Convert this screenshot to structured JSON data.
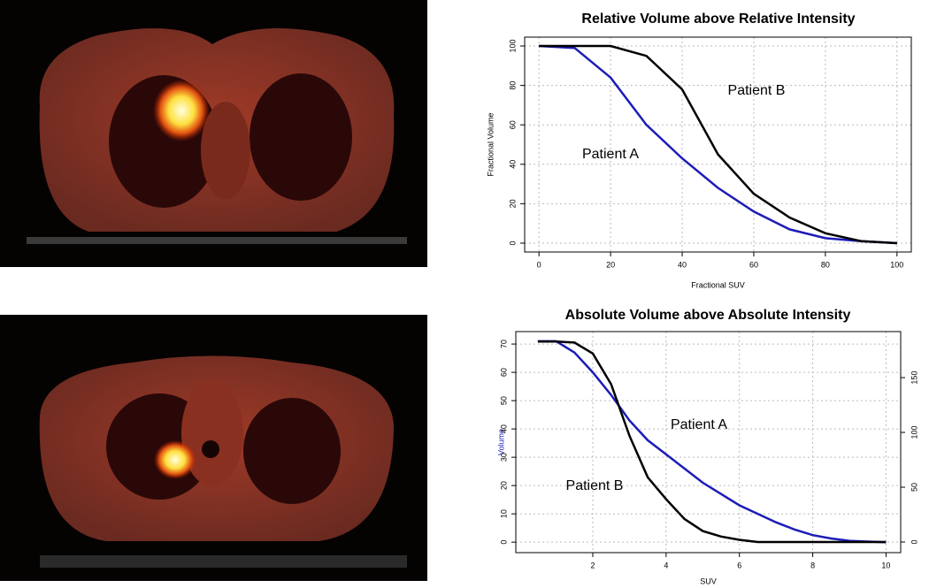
{
  "chart_data": [
    {
      "type": "line",
      "title": "Relative Volume above Relative Intensity",
      "x_label": "Fractional SUV",
      "y_label": "Fractional Volume",
      "x": [
        0,
        10,
        20,
        30,
        40,
        50,
        60,
        70,
        80,
        90,
        100
      ],
      "series": [
        {
          "name": "Patient A",
          "color": "#1c1cb8",
          "values": [
            100,
            99,
            84,
            60,
            43,
            28,
            16,
            7,
            2.5,
            1,
            0
          ]
        },
        {
          "name": "Patient B",
          "color": "#000000",
          "values": [
            100,
            100,
            100,
            95,
            78,
            45,
            25,
            13,
            5,
            1,
            0
          ]
        }
      ],
      "xlim": [
        -4,
        104
      ],
      "xticks": [
        0,
        20,
        40,
        60,
        80,
        100
      ],
      "ylim": [
        -4.5,
        104.5
      ],
      "yticks": [
        0,
        20,
        40,
        60,
        80,
        100
      ],
      "grid": true
    },
    {
      "type": "line",
      "title": "Absolute Volume above Absolute Intensity",
      "x_label": "SUV",
      "y_label": "Volume",
      "y_label_color": "#1c1cb8",
      "x": [
        0.5,
        1,
        1.5,
        2,
        2.5,
        3,
        3.5,
        4,
        4.5,
        5,
        5.5,
        6,
        6.5,
        7,
        7.5,
        8,
        8.5,
        9,
        9.5,
        10
      ],
      "series": [
        {
          "name": "Patient A",
          "color": "#1c1cb8",
          "values": [
            71,
            71,
            67,
            60,
            52,
            43,
            36,
            31,
            26,
            21,
            17,
            13,
            10,
            7,
            4.5,
            2.5,
            1.3,
            0.5,
            0.2,
            0
          ]
        },
        {
          "name": "Patient B",
          "color": "#000000",
          "axis": "y2",
          "values": [
            183,
            183,
            182,
            172,
            144,
            97,
            59,
            39,
            21,
            10,
            5,
            2,
            0,
            0,
            0,
            0,
            0,
            0,
            0,
            0
          ]
        }
      ],
      "xlim": [
        -0.1,
        10.4
      ],
      "xticks": [
        2,
        4,
        6,
        8,
        10
      ],
      "ylim": [
        -3.7,
        74.4
      ],
      "yticks": [
        0,
        10,
        20,
        30,
        40,
        50,
        60,
        70
      ],
      "y2lim": [
        -9.7,
        192
      ],
      "y2ticks": [
        0,
        50,
        100,
        150
      ],
      "grid": true
    }
  ]
}
